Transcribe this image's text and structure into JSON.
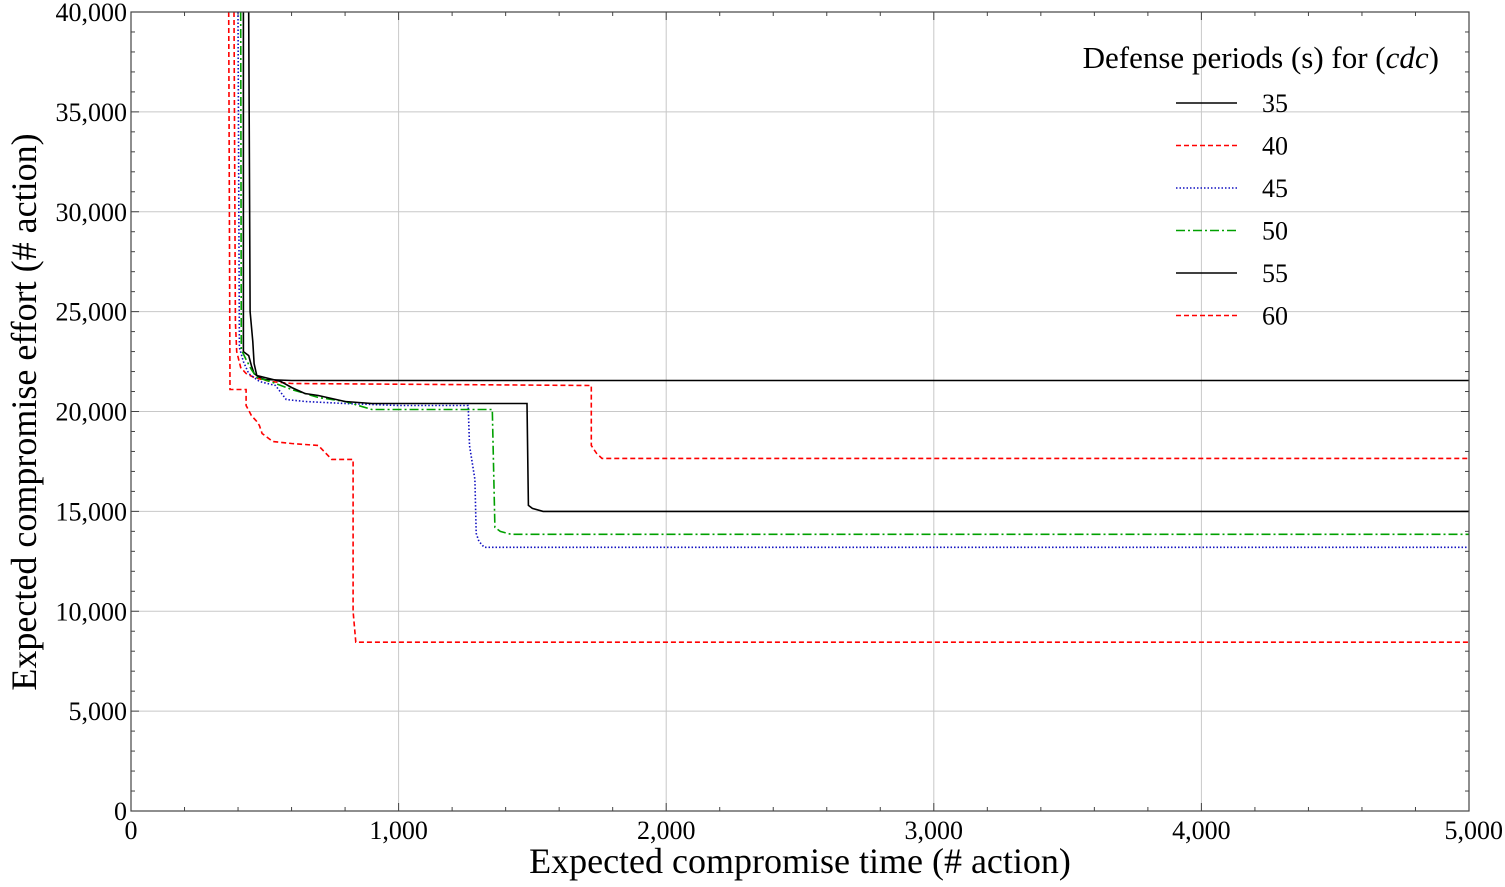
{
  "chart_data": {
    "type": "line",
    "title": "",
    "xlabel": "Expected compromise time (# action)",
    "ylabel": "Expected compromise effort (# action)",
    "xlim": [
      0,
      5000
    ],
    "ylim": [
      0,
      40000
    ],
    "grid": true,
    "x_ticks": [
      {
        "value": 0,
        "label": "0"
      },
      {
        "value": 1000,
        "label": "1,000"
      },
      {
        "value": 2000,
        "label": "2,000"
      },
      {
        "value": 3000,
        "label": "3,000"
      },
      {
        "value": 4000,
        "label": "4,000"
      },
      {
        "value": 5000,
        "label": "5,000"
      }
    ],
    "y_ticks": [
      {
        "value": 0,
        "label": "0"
      },
      {
        "value": 5000,
        "label": "5,000"
      },
      {
        "value": 10000,
        "label": "10,000"
      },
      {
        "value": 15000,
        "label": "15,000"
      },
      {
        "value": 20000,
        "label": "20,000"
      },
      {
        "value": 25000,
        "label": "25,000"
      },
      {
        "value": 30000,
        "label": "30,000"
      },
      {
        "value": 35000,
        "label": "35,000"
      },
      {
        "value": 40000,
        "label": "40,000"
      }
    ],
    "legend": {
      "title_prefix": "Defense periods (s) for (",
      "title_italic": "cdc",
      "title_suffix": ")",
      "position": "top-right"
    },
    "series": [
      {
        "name": "35",
        "color": "#000000",
        "style": "solid",
        "points": [
          [
            420,
            40000
          ],
          [
            420,
            23000
          ],
          [
            440,
            22800
          ],
          [
            450,
            22300
          ],
          [
            460,
            21900
          ],
          [
            480,
            21700
          ],
          [
            500,
            21600
          ],
          [
            600,
            21550
          ],
          [
            5000,
            21550
          ]
        ]
      },
      {
        "name": "40",
        "color": "#ff0000",
        "style": "dashed",
        "points": [
          [
            385,
            40000
          ],
          [
            390,
            24500
          ],
          [
            395,
            23000
          ],
          [
            410,
            22200
          ],
          [
            430,
            21900
          ],
          [
            460,
            21700
          ],
          [
            490,
            21600
          ],
          [
            520,
            21500
          ],
          [
            600,
            21400
          ],
          [
            1720,
            21300
          ],
          [
            1720,
            18300
          ],
          [
            1740,
            17900
          ],
          [
            1760,
            17650
          ],
          [
            5000,
            17650
          ]
        ]
      },
      {
        "name": "45",
        "color": "#1010c0",
        "style": "dotted",
        "points": [
          [
            400,
            40000
          ],
          [
            405,
            23200
          ],
          [
            420,
            22500
          ],
          [
            440,
            21900
          ],
          [
            480,
            21500
          ],
          [
            540,
            21300
          ],
          [
            580,
            20600
          ],
          [
            650,
            20500
          ],
          [
            800,
            20400
          ],
          [
            1000,
            20300
          ],
          [
            1260,
            20300
          ],
          [
            1265,
            18300
          ],
          [
            1285,
            16600
          ],
          [
            1290,
            13900
          ],
          [
            1300,
            13500
          ],
          [
            1320,
            13200
          ],
          [
            5000,
            13200
          ]
        ]
      },
      {
        "name": "50",
        "color": "#00a000",
        "style": "dashdot",
        "points": [
          [
            410,
            40000
          ],
          [
            412,
            23100
          ],
          [
            430,
            22600
          ],
          [
            450,
            22100
          ],
          [
            470,
            21700
          ],
          [
            520,
            21500
          ],
          [
            600,
            21100
          ],
          [
            700,
            20700
          ],
          [
            800,
            20500
          ],
          [
            900,
            20100
          ],
          [
            1000,
            20100
          ],
          [
            1350,
            20100
          ],
          [
            1360,
            14200
          ],
          [
            1380,
            14000
          ],
          [
            1420,
            13850
          ],
          [
            5000,
            13850
          ]
        ]
      },
      {
        "name": "55",
        "color": "#000000",
        "style": "solid",
        "points": [
          [
            440,
            40000
          ],
          [
            445,
            25000
          ],
          [
            455,
            23500
          ],
          [
            460,
            22400
          ],
          [
            470,
            21800
          ],
          [
            500,
            21700
          ],
          [
            560,
            21500
          ],
          [
            600,
            21200
          ],
          [
            650,
            20900
          ],
          [
            700,
            20800
          ],
          [
            800,
            20500
          ],
          [
            900,
            20400
          ],
          [
            1480,
            20400
          ],
          [
            1485,
            15300
          ],
          [
            1500,
            15150
          ],
          [
            1540,
            15000
          ],
          [
            5000,
            15000
          ]
        ]
      },
      {
        "name": "60",
        "color": "#ff0000",
        "style": "dashed",
        "points": [
          [
            365,
            40000
          ],
          [
            370,
            21100
          ],
          [
            430,
            21100
          ],
          [
            430,
            20300
          ],
          [
            450,
            19800
          ],
          [
            470,
            19500
          ],
          [
            480,
            19300
          ],
          [
            490,
            18900
          ],
          [
            500,
            18800
          ],
          [
            530,
            18500
          ],
          [
            600,
            18400
          ],
          [
            650,
            18350
          ],
          [
            700,
            18300
          ],
          [
            750,
            17600
          ],
          [
            830,
            17600
          ],
          [
            830,
            10000
          ],
          [
            840,
            8450
          ],
          [
            5000,
            8450
          ]
        ]
      }
    ]
  }
}
